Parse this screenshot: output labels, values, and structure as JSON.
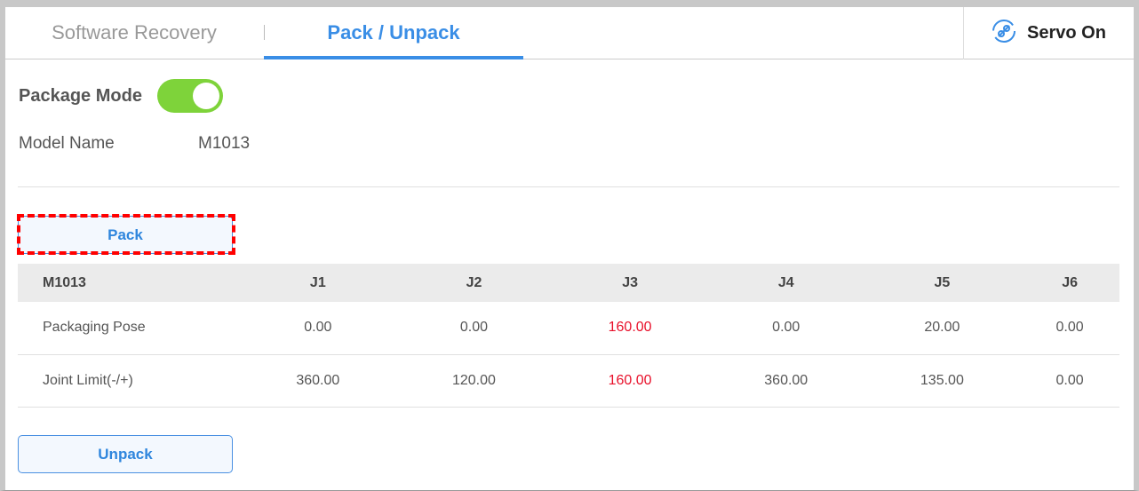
{
  "tabs": [
    {
      "label": "Software Recovery"
    },
    {
      "label": "Pack / Unpack",
      "active": true
    }
  ],
  "servo": {
    "label": "Servo On",
    "icon": "servo-link-icon"
  },
  "package_mode": {
    "label": "Package Mode",
    "on": true,
    "color": "#7ed33a"
  },
  "model": {
    "label": "Model Name",
    "value": "M1013"
  },
  "pack_label": "Pack",
  "unpack_label": "Unpack",
  "table": {
    "headers": [
      "M1013",
      "J1",
      "J2",
      "J3",
      "J4",
      "J5",
      "J6"
    ],
    "rows": [
      [
        "Packaging Pose",
        "0.00",
        "0.00",
        "160.00",
        "0.00",
        "20.00",
        "0.00"
      ],
      [
        "Joint Limit(-/+)",
        "360.00",
        "120.00",
        "160.00",
        "360.00",
        "135.00",
        "0.00"
      ]
    ],
    "highlight_color": "#e8102a"
  }
}
